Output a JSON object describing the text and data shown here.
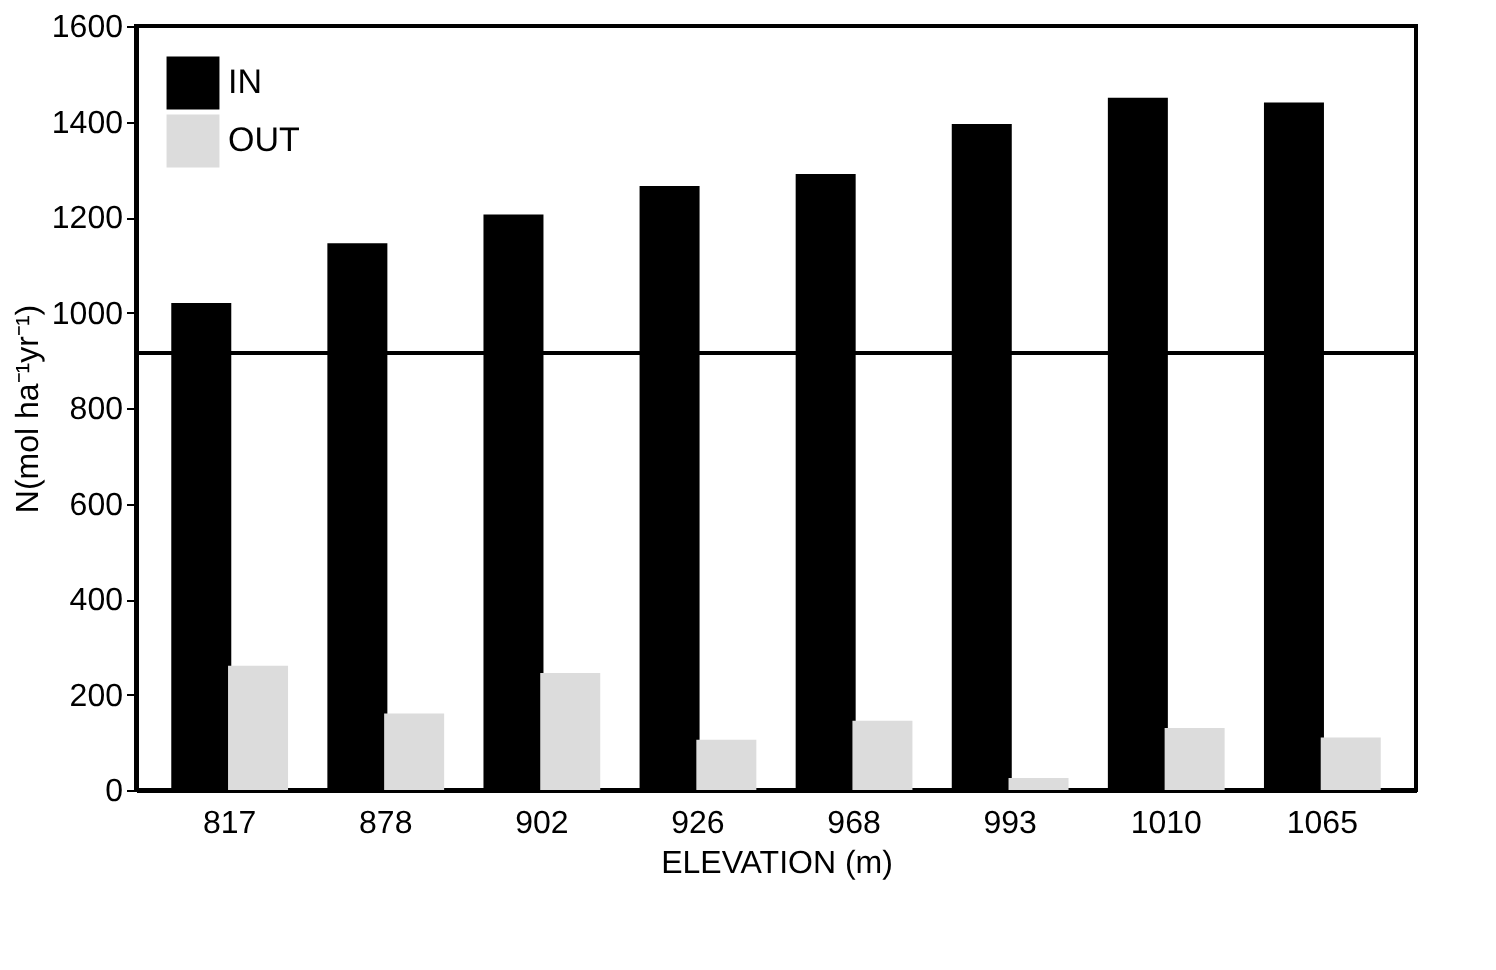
{
  "chart_data": {
    "type": "bar",
    "xlabel": "ELEVATION (m)",
    "ylabel": "N(mol ha⁻¹yr⁻¹)",
    "categories": [
      "817",
      "878",
      "902",
      "926",
      "968",
      "993",
      "1010",
      "1065"
    ],
    "series": [
      {
        "name": "IN",
        "color": "#000000",
        "values": [
          1020,
          1145,
          1205,
          1265,
          1290,
          1395,
          1450,
          1440
        ]
      },
      {
        "name": "OUT",
        "color": "#dcdcdc",
        "values": [
          260,
          160,
          245,
          105,
          145,
          25,
          130,
          110
        ]
      }
    ],
    "ylim": [
      0,
      1600
    ],
    "yticks": [
      0,
      200,
      400,
      600,
      800,
      1000,
      1200,
      1400,
      1600
    ],
    "ref_lines": [
      {
        "axis": "y",
        "value": 915,
        "color": "#000000"
      }
    ],
    "grid": false,
    "legend": "top left"
  }
}
